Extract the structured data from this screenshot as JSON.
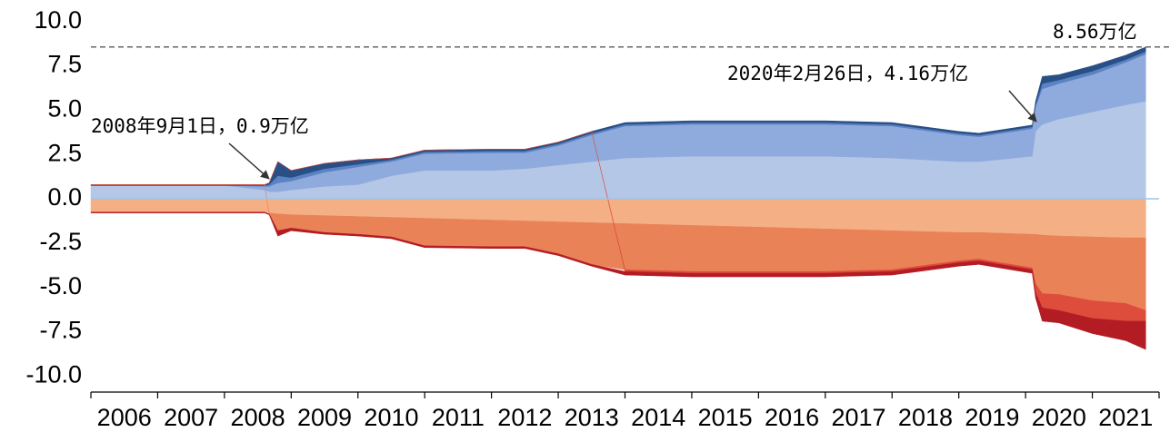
{
  "chart_data": {
    "type": "area",
    "x": [
      2006,
      2007,
      2008,
      2008.6,
      2008.67,
      2008.8,
      2009,
      2009.5,
      2010,
      2010.5,
      2011,
      2012,
      2012.5,
      2013,
      2013.5,
      2014,
      2015,
      2016,
      2017,
      2018,
      2019,
      2019.3,
      2020.1,
      2020.15,
      2020.25,
      2020.5,
      2021,
      2021.5,
      2021.8
    ],
    "series": [
      {
        "color": "#b4c7e7",
        "values": [
          0.75,
          0.75,
          0.75,
          0.5,
          0.4,
          0.4,
          0.5,
          0.7,
          0.8,
          1.3,
          1.6,
          1.6,
          1.7,
          1.9,
          2.1,
          2.3,
          2.4,
          2.4,
          2.4,
          2.3,
          2.1,
          2.1,
          2.4,
          3.8,
          4.2,
          4.5,
          4.9,
          5.3,
          5.5
        ]
      },
      {
        "color": "#8faadc",
        "values": [
          0,
          0,
          0,
          0.2,
          0.3,
          0.5,
          0.5,
          0.8,
          1.0,
          0.8,
          0.95,
          1.0,
          0.9,
          1.1,
          1.5,
          1.8,
          1.8,
          1.8,
          1.8,
          1.8,
          1.5,
          1.4,
          1.56,
          1.4,
          2.0,
          2.0,
          2.1,
          2.4,
          2.66
        ]
      },
      {
        "color": "#5b82c3",
        "values": [
          0,
          0,
          0,
          0.05,
          0.1,
          0.4,
          0.2,
          0.2,
          0.15,
          0.1,
          0.1,
          0.1,
          0.1,
          0.1,
          0.1,
          0.1,
          0.1,
          0.1,
          0.1,
          0.1,
          0.1,
          0.1,
          0.1,
          0.1,
          0.3,
          0.2,
          0.2,
          0.15,
          0.15
        ]
      },
      {
        "color": "#284f86",
        "values": [
          0.05,
          0.05,
          0.05,
          0.05,
          0.1,
          0.8,
          0.4,
          0.3,
          0.25,
          0.1,
          0.1,
          0.1,
          0.1,
          0.1,
          0.1,
          0.1,
          0.1,
          0.1,
          0.1,
          0.1,
          0.1,
          0.1,
          0.1,
          0.2,
          0.4,
          0.3,
          0.3,
          0.25,
          0.25
        ]
      },
      {
        "color": "#f4b084",
        "values": [
          -0.75,
          -0.75,
          -0.75,
          -0.75,
          -0.8,
          -0.85,
          -0.9,
          -0.95,
          -1.0,
          -1.05,
          -1.1,
          -1.2,
          -1.25,
          -1.3,
          -1.35,
          -1.4,
          -1.5,
          -1.6,
          -1.7,
          -1.8,
          -1.9,
          -1.9,
          -2.0,
          -2.0,
          -2.05,
          -2.1,
          -2.15,
          -2.2,
          -2.2
        ]
      },
      {
        "color": "#ea8257",
        "values": [
          0,
          0,
          0,
          0,
          -0.05,
          -0.95,
          -0.75,
          -0.95,
          -1.0,
          -1.1,
          -1.55,
          -1.5,
          -1.45,
          -1.8,
          -2.35,
          -2.6,
          -2.6,
          -2.5,
          -2.4,
          -2.2,
          -1.6,
          -1.5,
          -1.9,
          -2.8,
          -3.3,
          -3.3,
          -3.6,
          -3.7,
          -4.1
        ]
      },
      {
        "color": "#de4c3c",
        "values": [
          0,
          0,
          0,
          0,
          0,
          0,
          0,
          0,
          0,
          0,
          0,
          0,
          0,
          0,
          0,
          -0.1,
          -0.1,
          -0.1,
          -0.1,
          -0.1,
          -0.1,
          -0.1,
          -0.1,
          -0.5,
          -0.8,
          -0.9,
          -1.0,
          -1.0,
          -0.6
        ]
      },
      {
        "color": "#b41c24",
        "values": [
          -0.05,
          -0.05,
          -0.05,
          -0.05,
          -0.05,
          -0.3,
          -0.15,
          -0.1,
          -0.1,
          -0.1,
          -0.1,
          -0.1,
          -0.1,
          -0.1,
          -0.1,
          -0.2,
          -0.2,
          -0.2,
          -0.2,
          -0.2,
          -0.2,
          -0.2,
          -0.2,
          -0.3,
          -0.75,
          -0.7,
          -0.85,
          -1.1,
          -1.6
        ]
      }
    ],
    "xlim": [
      2006,
      2022
    ],
    "xticks": [
      {
        "value": 2006.5,
        "label": "2006"
      },
      {
        "value": 2007.5,
        "label": "2007"
      },
      {
        "value": 2008.5,
        "label": "2008"
      },
      {
        "value": 2009.5,
        "label": "2009"
      },
      {
        "value": 2010.5,
        "label": "2010"
      },
      {
        "value": 2011.5,
        "label": "2011"
      },
      {
        "value": 2012.5,
        "label": "2012"
      },
      {
        "value": 2013.5,
        "label": "2013"
      },
      {
        "value": 2014.5,
        "label": "2014"
      },
      {
        "value": 2015.5,
        "label": "2015"
      },
      {
        "value": 2016.5,
        "label": "2016"
      },
      {
        "value": 2017.5,
        "label": "2017"
      },
      {
        "value": 2018.5,
        "label": "2018"
      },
      {
        "value": 2019.5,
        "label": "2019"
      },
      {
        "value": 2020.5,
        "label": "2020"
      },
      {
        "value": 2021.5,
        "label": "2021"
      }
    ],
    "ylim": [
      -10.9,
      10.7
    ],
    "yticks": [
      {
        "value": 10,
        "label": "10.0"
      },
      7.5,
      {
        "value": 5,
        "label": "5.0"
      },
      2.5,
      {
        "value": 0,
        "label": "0.0"
      },
      -2.5,
      {
        "value": -5,
        "label": "-5.0"
      },
      -7.5,
      {
        "value": -10,
        "label": "-10.0"
      }
    ],
    "hline": 8.56,
    "annotations": [
      "8.56万亿",
      "2020年2月26日，4.16万亿",
      "2008年9月1日，0.9万亿"
    ]
  }
}
